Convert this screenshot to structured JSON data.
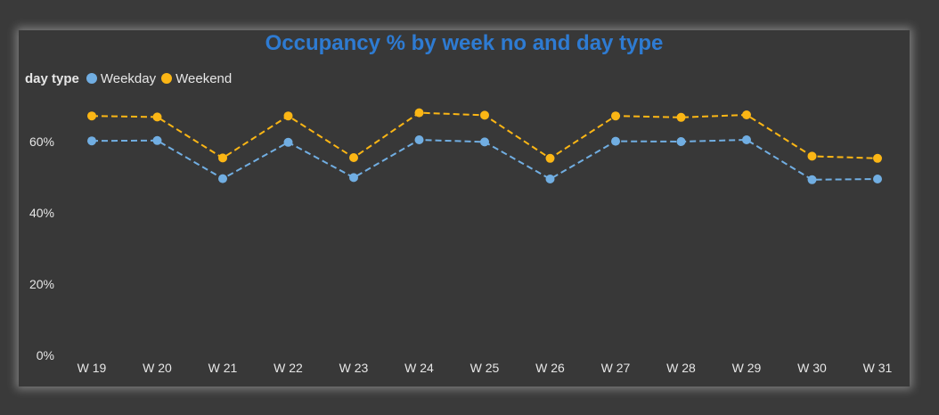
{
  "colors": {
    "weekday": "#71aee2",
    "weekend": "#fbb615",
    "title": "#2e7bd2"
  },
  "legend": {
    "title": "day type"
  },
  "chart_data": {
    "type": "line",
    "title": "Occupancy % by week no and day type",
    "xlabel": "",
    "ylabel": "",
    "categories": [
      "W 19",
      "W 20",
      "W 21",
      "W 22",
      "W 23",
      "W 24",
      "W 25",
      "W 26",
      "W 27",
      "W 28",
      "W 29",
      "W 30",
      "W 31"
    ],
    "series": [
      {
        "name": "Weekday",
        "values": [
          60.2,
          60.3,
          49.6,
          59.8,
          49.9,
          60.5,
          59.9,
          49.5,
          60.1,
          60.0,
          60.5,
          49.3,
          49.5
        ]
      },
      {
        "name": "Weekend",
        "values": [
          67.2,
          66.9,
          55.4,
          67.2,
          55.5,
          68.1,
          67.4,
          55.3,
          67.2,
          66.8,
          67.5,
          55.9,
          55.3
        ]
      }
    ],
    "ylim": [
      0,
      70
    ],
    "yticks": [
      0,
      20,
      40,
      60
    ],
    "ytick_labels": [
      "0%",
      "20%",
      "40%",
      "60%"
    ],
    "line_style": "dashed",
    "grid": false,
    "legend_position": "top-left"
  }
}
